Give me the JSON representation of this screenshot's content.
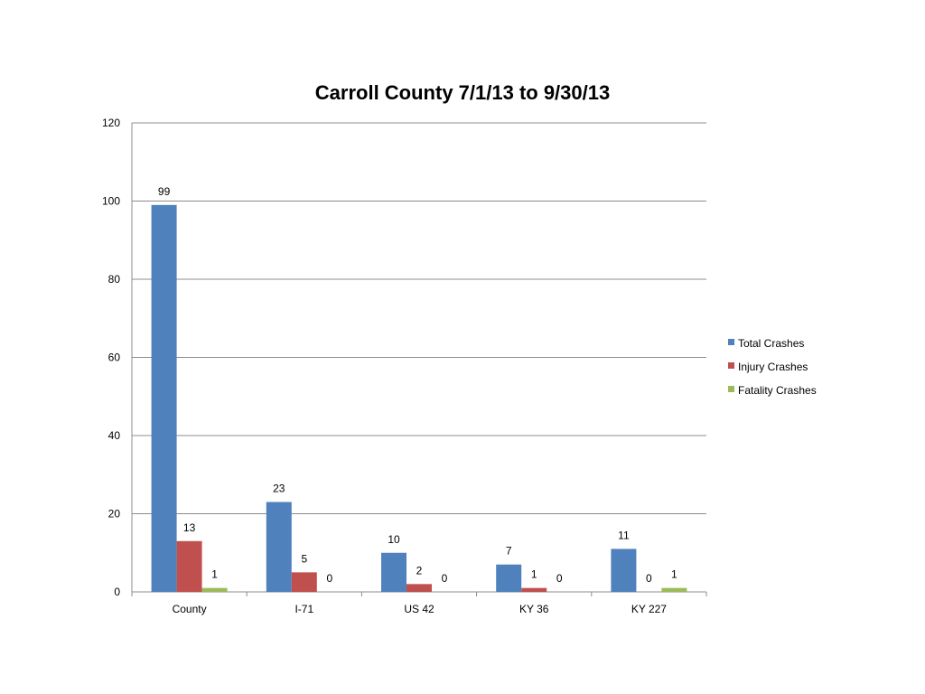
{
  "chart_data": {
    "type": "bar",
    "title": "Carroll County 7/1/13 to 9/30/13",
    "categories": [
      "County",
      "I-71",
      "US 42",
      "KY 36",
      "KY 227"
    ],
    "series": [
      {
        "name": "Total Crashes",
        "values": [
          99,
          23,
          10,
          7,
          11
        ],
        "color": "#4F81BD"
      },
      {
        "name": "Injury Crashes",
        "values": [
          13,
          5,
          2,
          1,
          0
        ],
        "color": "#C0504D"
      },
      {
        "name": "Fatality Crashes",
        "values": [
          1,
          0,
          0,
          0,
          1
        ],
        "color": "#9BBB59"
      }
    ],
    "ylim": [
      0,
      120
    ],
    "yticks": [
      0,
      20,
      40,
      60,
      80,
      100,
      120
    ],
    "grid": true,
    "legend": "right"
  }
}
